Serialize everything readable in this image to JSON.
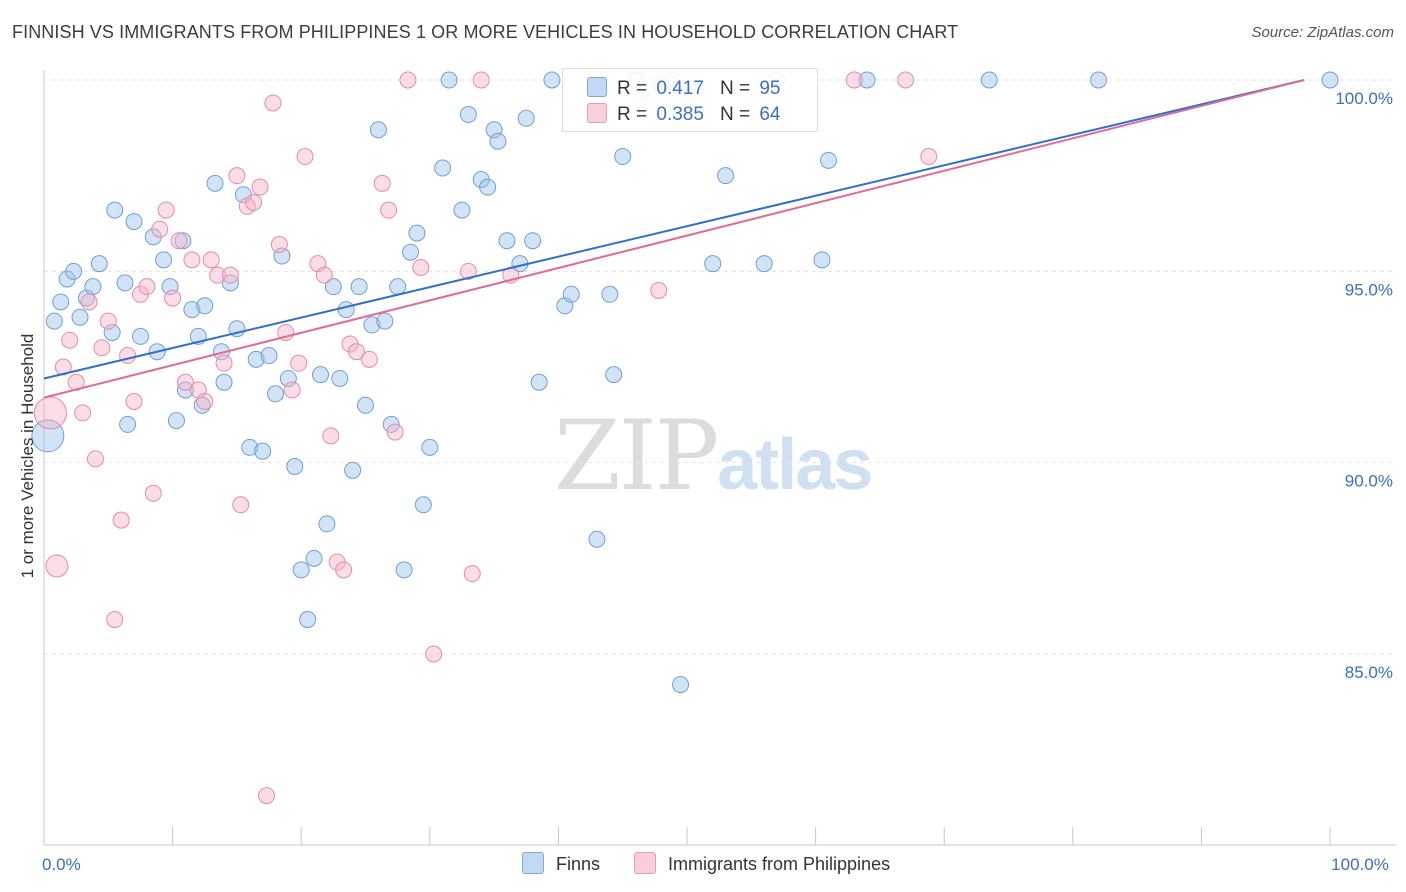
{
  "title": "FINNISH VS IMMIGRANTS FROM PHILIPPINES 1 OR MORE VEHICLES IN HOUSEHOLD CORRELATION CHART",
  "source": "Source: ZipAtlas.com",
  "watermark": {
    "zip": "ZIP",
    "atlas": "atlas"
  },
  "legend_box": {
    "rows": [
      {
        "r_label": "R =",
        "r_value": "0.417",
        "n_label": "N =",
        "n_value": "95",
        "color": "#9ec1ea"
      },
      {
        "r_label": "R =",
        "r_value": "0.385",
        "n_label": "N =",
        "n_value": "64",
        "color": "#f4b3c8"
      }
    ]
  },
  "bottom_legend": [
    {
      "label": "Finns",
      "color": "#9ec1ea"
    },
    {
      "label": "Immigrants from Philippines",
      "color": "#f4b3c8"
    }
  ],
  "chart_data": {
    "type": "scatter",
    "title": "FINNISH VS IMMIGRANTS FROM PHILIPPINES 1 OR MORE VEHICLES IN HOUSEHOLD CORRELATION CHART",
    "xlabel": "",
    "ylabel": "1 or more Vehicles in Household",
    "xlim": [
      0,
      100
    ],
    "ylim": [
      80.0,
      100.8
    ],
    "x_tick_labels": [
      {
        "value": 0,
        "label": "0.0%"
      },
      {
        "value": 100,
        "label": "100.0%"
      }
    ],
    "y_tick_labels": [
      {
        "value": 85,
        "label": "85.0%"
      },
      {
        "value": 90,
        "label": "90.0%"
      },
      {
        "value": 95,
        "label": "95.0%"
      },
      {
        "value": 100,
        "label": "100.0%"
      }
    ],
    "grid": true,
    "legend_position": "top-center",
    "series": [
      {
        "name": "Finns",
        "color": "#9ec1ea",
        "stroke": "#6f9fd8",
        "trend": {
          "x": [
            0,
            98
          ],
          "y": [
            92.2,
            100.0
          ],
          "color": "#2f6fcf"
        },
        "points": [
          [
            0.3,
            90.7
          ],
          [
            0.8,
            93.7
          ],
          [
            1.3,
            94.2
          ],
          [
            1.8,
            94.8
          ],
          [
            2.3,
            95.0
          ],
          [
            2.8,
            93.8
          ],
          [
            3.3,
            94.3
          ],
          [
            3.8,
            94.6
          ],
          [
            4.3,
            95.2
          ],
          [
            5.3,
            93.4
          ],
          [
            5.5,
            96.6
          ],
          [
            6.3,
            94.7
          ],
          [
            6.5,
            91.0
          ],
          [
            7.0,
            96.3
          ],
          [
            7.5,
            93.3
          ],
          [
            8.5,
            95.9
          ],
          [
            8.8,
            92.9
          ],
          [
            9.3,
            95.3
          ],
          [
            9.8,
            94.6
          ],
          [
            10.3,
            91.1
          ],
          [
            10.8,
            95.8
          ],
          [
            11.0,
            91.9
          ],
          [
            11.5,
            94.0
          ],
          [
            12.0,
            93.3
          ],
          [
            12.3,
            91.5
          ],
          [
            12.5,
            94.1
          ],
          [
            13.3,
            97.3
          ],
          [
            13.8,
            92.9
          ],
          [
            14.0,
            92.1
          ],
          [
            14.5,
            94.7
          ],
          [
            15.0,
            93.5
          ],
          [
            15.5,
            97.0
          ],
          [
            16.0,
            90.4
          ],
          [
            16.5,
            92.7
          ],
          [
            17.0,
            90.3
          ],
          [
            17.5,
            92.8
          ],
          [
            18.0,
            91.8
          ],
          [
            18.5,
            95.4
          ],
          [
            19.0,
            92.2
          ],
          [
            19.5,
            89.9
          ],
          [
            20.0,
            87.2
          ],
          [
            20.5,
            85.9
          ],
          [
            21.0,
            87.5
          ],
          [
            21.5,
            92.3
          ],
          [
            22.0,
            88.4
          ],
          [
            22.5,
            94.6
          ],
          [
            23.0,
            92.2
          ],
          [
            23.5,
            94.0
          ],
          [
            24.0,
            89.8
          ],
          [
            24.5,
            94.6
          ],
          [
            25.0,
            91.5
          ],
          [
            25.5,
            93.6
          ],
          [
            26.0,
            98.7
          ],
          [
            26.5,
            93.7
          ],
          [
            27.0,
            91.0
          ],
          [
            27.5,
            94.6
          ],
          [
            28.0,
            87.2
          ],
          [
            28.5,
            95.5
          ],
          [
            29.0,
            96.0
          ],
          [
            29.5,
            88.9
          ],
          [
            30.0,
            90.4
          ],
          [
            31.0,
            97.7
          ],
          [
            31.5,
            100.0
          ],
          [
            32.5,
            96.6
          ],
          [
            33.0,
            99.1
          ],
          [
            34.0,
            97.4
          ],
          [
            34.5,
            97.2
          ],
          [
            35.0,
            98.7
          ],
          [
            35.3,
            98.4
          ],
          [
            36.0,
            95.8
          ],
          [
            37.0,
            95.2
          ],
          [
            37.5,
            99.0
          ],
          [
            38.0,
            95.8
          ],
          [
            38.5,
            92.1
          ],
          [
            39.5,
            100.0
          ],
          [
            40.5,
            94.1
          ],
          [
            41.0,
            94.4
          ],
          [
            43.0,
            88.0
          ],
          [
            44.0,
            94.4
          ],
          [
            44.3,
            92.3
          ],
          [
            45.0,
            98.0
          ],
          [
            46.0,
            100.0
          ],
          [
            46.5,
            99.7
          ],
          [
            47.0,
            99.8
          ],
          [
            48.0,
            99.9
          ],
          [
            49.0,
            100.0
          ],
          [
            49.5,
            84.2
          ],
          [
            50.0,
            99.6
          ],
          [
            52.0,
            95.2
          ],
          [
            53.0,
            97.5
          ],
          [
            56.0,
            95.2
          ],
          [
            57.0,
            100.0
          ],
          [
            60.5,
            95.3
          ],
          [
            61.0,
            97.9
          ],
          [
            64.0,
            100.0
          ]
        ],
        "extra_points_right": [
          [
            73.5,
            100.0
          ],
          [
            82.0,
            100.0
          ],
          [
            100.0,
            100.0
          ]
        ]
      },
      {
        "name": "Immigrants from Philippines",
        "color": "#f4b3c8",
        "stroke": "#e88aa8",
        "trend": {
          "x": [
            0,
            98
          ],
          "y": [
            91.7,
            100.0
          ],
          "color": "#e06c94"
        },
        "points": [
          [
            0.5,
            91.3
          ],
          [
            1.0,
            87.3
          ],
          [
            1.5,
            92.5
          ],
          [
            2.0,
            93.2
          ],
          [
            2.5,
            92.1
          ],
          [
            3.0,
            91.3
          ],
          [
            3.5,
            94.2
          ],
          [
            4.0,
            90.1
          ],
          [
            4.5,
            93.0
          ],
          [
            5.0,
            93.7
          ],
          [
            5.5,
            85.9
          ],
          [
            6.0,
            88.5
          ],
          [
            6.5,
            92.8
          ],
          [
            7.0,
            91.6
          ],
          [
            7.5,
            94.4
          ],
          [
            8.0,
            94.6
          ],
          [
            8.5,
            89.2
          ],
          [
            9.0,
            96.1
          ],
          [
            9.5,
            96.6
          ],
          [
            10.0,
            94.3
          ],
          [
            10.5,
            95.8
          ],
          [
            11.0,
            92.1
          ],
          [
            11.5,
            95.3
          ],
          [
            12.0,
            91.9
          ],
          [
            12.5,
            91.6
          ],
          [
            13.0,
            95.3
          ],
          [
            13.5,
            94.9
          ],
          [
            14.0,
            92.6
          ],
          [
            14.5,
            94.9
          ],
          [
            15.0,
            97.5
          ],
          [
            15.3,
            88.9
          ],
          [
            15.8,
            96.7
          ],
          [
            16.3,
            96.8
          ],
          [
            16.8,
            97.2
          ],
          [
            17.3,
            81.3
          ],
          [
            17.8,
            99.4
          ],
          [
            18.3,
            95.7
          ],
          [
            18.8,
            93.4
          ],
          [
            19.3,
            91.9
          ],
          [
            19.8,
            92.6
          ],
          [
            20.3,
            98.0
          ],
          [
            21.3,
            95.2
          ],
          [
            21.8,
            94.9
          ],
          [
            22.3,
            90.7
          ],
          [
            22.8,
            87.4
          ],
          [
            23.3,
            87.2
          ],
          [
            23.8,
            93.1
          ],
          [
            24.3,
            92.9
          ],
          [
            25.3,
            92.7
          ],
          [
            26.3,
            97.3
          ],
          [
            26.8,
            96.6
          ],
          [
            27.3,
            90.8
          ],
          [
            28.3,
            100.0
          ],
          [
            29.3,
            95.1
          ],
          [
            30.3,
            85.0
          ],
          [
            33.3,
            87.1
          ],
          [
            33.0,
            95.0
          ],
          [
            36.3,
            94.9
          ],
          [
            47.8,
            94.5
          ],
          [
            50.0,
            99.8
          ],
          [
            63.0,
            100.0
          ],
          [
            67.0,
            100.0
          ],
          [
            68.8,
            98.0
          ],
          [
            34.0,
            100.0
          ]
        ]
      }
    ]
  }
}
